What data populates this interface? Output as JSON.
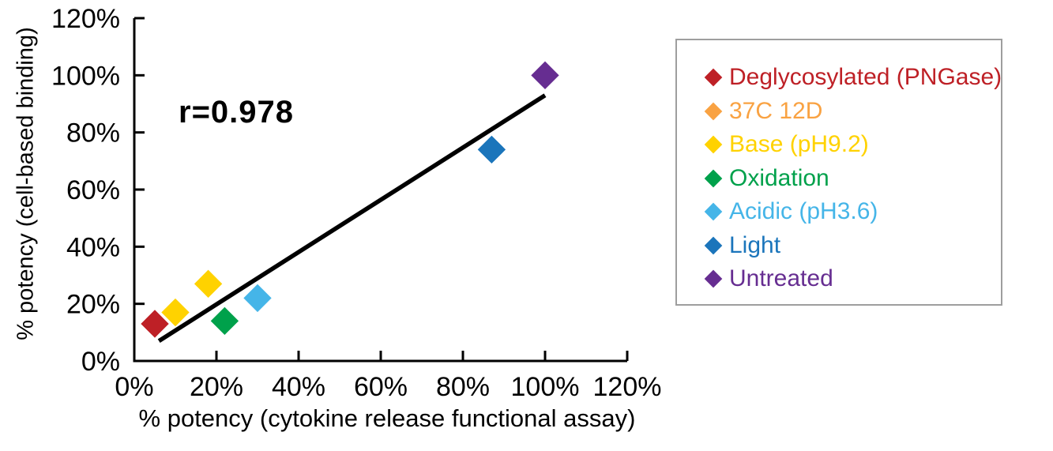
{
  "chart_data": {
    "type": "scatter",
    "title": "",
    "annotation": {
      "text": "r=0.978"
    },
    "xlabel": "% potency (cytokine release functional assay)",
    "ylabel": "% potency (cell-based binding)",
    "xlim": [
      0,
      120
    ],
    "ylim": [
      0,
      120
    ],
    "xticks": [
      0,
      20,
      40,
      60,
      80,
      100,
      120
    ],
    "yticks": [
      0,
      20,
      40,
      60,
      80,
      100,
      120
    ],
    "tick_label_suffix": "%",
    "grid": false,
    "marker": "diamond",
    "legend_position": "right",
    "series": [
      {
        "name": "Deglycosylated (PNGase)",
        "color": "#BE2026",
        "marker_color": "#BE2026",
        "points": [
          [
            5,
            13
          ]
        ]
      },
      {
        "name": "37C 12D",
        "color": "#F9A242",
        "marker_color": "#FFD200",
        "points": [
          [
            10,
            17
          ]
        ]
      },
      {
        "name": "Base (pH9.2)",
        "color": "#FFD200",
        "marker_color": "#FFD200",
        "points": [
          [
            18,
            27
          ]
        ]
      },
      {
        "name": "Oxidation",
        "color": "#00A14B",
        "marker_color": "#00A14B",
        "points": [
          [
            22,
            14
          ]
        ]
      },
      {
        "name": "Acidic (pH3.6)",
        "color": "#45B5E8",
        "marker_color": "#45B5E8",
        "points": [
          [
            30,
            22
          ]
        ]
      },
      {
        "name": "Light",
        "color": "#1B75BB",
        "marker_color": "#1B75BB",
        "points": [
          [
            87,
            74
          ]
        ]
      },
      {
        "name": "Untreated",
        "color": "#662D91",
        "marker_color": "#662D91",
        "points": [
          [
            100,
            100
          ]
        ]
      }
    ],
    "trendline": {
      "x": [
        6,
        100
      ],
      "y": [
        7,
        93
      ],
      "color": "#000000"
    }
  },
  "colors": {
    "axis": "#000000",
    "legend_border": "#9E9E9E",
    "background": "#FFFFFF"
  }
}
